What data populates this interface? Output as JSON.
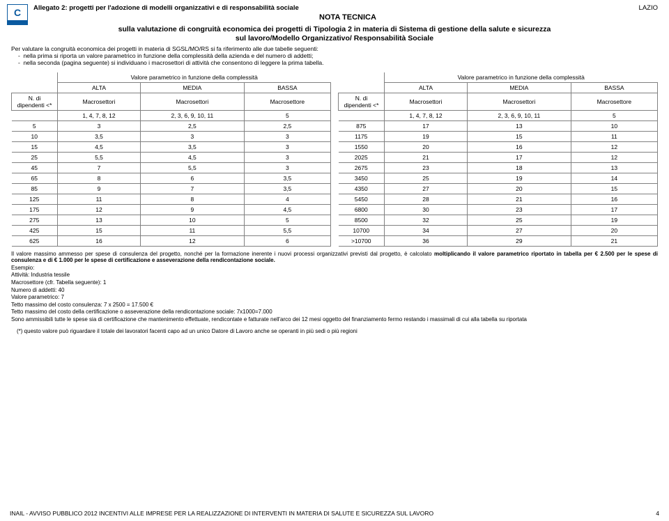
{
  "header": {
    "allegato": "Allegato 2: progetti per l'adozione di modelli organizzativi e di responsabilità sociale",
    "region": "LAZIO",
    "nota": "NOTA TECNICA",
    "subtitle_l1": "sulla valutazione di congruità economica dei progetti di Tipologia 2 in materia di Sistema di gestione della salute e sicurezza",
    "subtitle_l2": "sul lavoro/Modello Organizzativo/ Responsabilità Sociale"
  },
  "intro": {
    "lead": "Per valutare la congruità economica dei progetti in materia di SGSL/MO/RS si fa riferimento alle due tabelle seguenti:",
    "b1": "nella prima si riporta un valore parametrico in funzione della complessità della azienda e del numero di addetti;",
    "b2": "nella seconda (pagina seguente) si individuano i macrosettori di attività che consentono di leggere la prima tabella."
  },
  "table": {
    "param_title": "Valore parametrico in funzione della complessità",
    "n_di": "N. di",
    "dipendenti": "dipendenti <*",
    "alta": "ALTA",
    "media": "MEDIA",
    "bassa": "BASSA",
    "macrosettori": "Macrosettori",
    "macrosettore": "Macrosettore",
    "sub_a": "1, 4, 7, 8, 12",
    "sub_b": "2, 3, 6, 9, 10, 11",
    "sub_c": "5"
  },
  "left_rows": [
    {
      "n": "5",
      "a": "3",
      "b": "2,5",
      "c": "2,5"
    },
    {
      "n": "10",
      "a": "3,5",
      "b": "3",
      "c": "3"
    },
    {
      "n": "15",
      "a": "4,5",
      "b": "3,5",
      "c": "3"
    },
    {
      "n": "25",
      "a": "5,5",
      "b": "4,5",
      "c": "3"
    },
    {
      "n": "45",
      "a": "7",
      "b": "5,5",
      "c": "3"
    },
    {
      "n": "65",
      "a": "8",
      "b": "6",
      "c": "3,5"
    },
    {
      "n": "85",
      "a": "9",
      "b": "7",
      "c": "3,5"
    },
    {
      "n": "125",
      "a": "11",
      "b": "8",
      "c": "4"
    },
    {
      "n": "175",
      "a": "12",
      "b": "9",
      "c": "4,5"
    },
    {
      "n": "275",
      "a": "13",
      "b": "10",
      "c": "5"
    },
    {
      "n": "425",
      "a": "15",
      "b": "11",
      "c": "5,5"
    },
    {
      "n": "625",
      "a": "16",
      "b": "12",
      "c": "6"
    }
  ],
  "right_rows": [
    {
      "n": "875",
      "a": "17",
      "b": "13",
      "c": "10"
    },
    {
      "n": "1175",
      "a": "19",
      "b": "15",
      "c": "11"
    },
    {
      "n": "1550",
      "a": "20",
      "b": "16",
      "c": "12"
    },
    {
      "n": "2025",
      "a": "21",
      "b": "17",
      "c": "12"
    },
    {
      "n": "2675",
      "a": "23",
      "b": "18",
      "c": "13"
    },
    {
      "n": "3450",
      "a": "25",
      "b": "19",
      "c": "14"
    },
    {
      "n": "4350",
      "a": "27",
      "b": "20",
      "c": "15"
    },
    {
      "n": "5450",
      "a": "28",
      "b": "21",
      "c": "16"
    },
    {
      "n": "6800",
      "a": "30",
      "b": "23",
      "c": "17"
    },
    {
      "n": "8500",
      "a": "32",
      "b": "25",
      "c": "19"
    },
    {
      "n": "10700",
      "a": "34",
      "b": "27",
      "c": "20"
    },
    {
      "n": ">10700",
      "a": "36",
      "b": "29",
      "c": "21"
    }
  ],
  "notes": {
    "p1a": "Il valore massimo ammesso per spese di consulenza del progetto, nonché per la formazione inerente i nuovi processi organizzativi previsti dal progetto, è calcolato ",
    "p1b": "moltiplicando il valore parametrico riportato in tabella  per € 2.500 per le spese di consulenza e di € 1.000 per le spese di certificazione e asseverazione della rendicontazione sociale.",
    "p2": "Esempio:",
    "p3": "Attività: Industria tessile",
    "p4": "Macrosettore (cfr. Tabella seguente): 1",
    "p5": "Numero di addetti: 40",
    "p6": "Valore parametrico: 7",
    "p7": "Tetto massimo del costo consulenza: 7 x 2500 = 17.500 €",
    "p8": "Tetto massimo del costo della certificazione o asseverazione della rendicontazione sociale: 7x1000=7.000",
    "p9": "Sono ammissibili tutte le spese sia di certificazione che mantenimento effettuate, rendicontate e fatturate nell'arco dei 12 mesi oggetto del finanziamento fermo restando i massimali di cui alla tabella su riportata"
  },
  "footnote": "(*) questo valore  può riguardare il totale dei lavoratori facenti capo ad un unico Datore di Lavoro anche se operanti in più sedi o più regioni",
  "footer": {
    "left": "INAIL - AVVISO PUBBLICO 2012 INCENTIVI ALLE IMPRESE  PER LA REALIZZAZIONE DI  INTERVENTI IN MATERIA DI SALUTE E SICUREZZA SUL LAVORO",
    "page": "4"
  },
  "style": {
    "border_color": "#808080",
    "text_color": "#000000",
    "logo_blue": "#0a5aa0",
    "bg": "#ffffff"
  }
}
